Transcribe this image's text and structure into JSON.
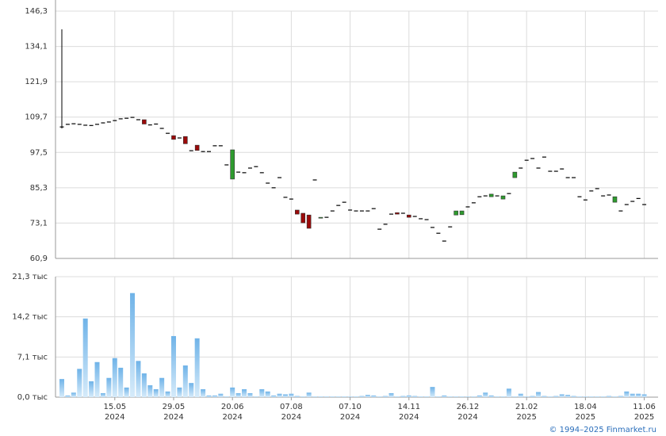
{
  "chart_data": [
    {
      "type": "candlestick",
      "categories": [
        null,
        null,
        null,
        null,
        null,
        null,
        null,
        null,
        null,
        "15.05",
        null,
        null,
        null,
        null,
        null,
        null,
        null,
        null,
        null,
        "29.05",
        null,
        null,
        null,
        null,
        null,
        null,
        null,
        null,
        null,
        "20.06",
        null,
        null,
        null,
        null,
        null,
        null,
        null,
        null,
        null,
        "07.08",
        null,
        null,
        null,
        null,
        null,
        null,
        null,
        null,
        null,
        "07.10",
        null,
        null,
        null,
        null,
        null,
        null,
        null,
        null,
        null,
        "14.11",
        null,
        null,
        null,
        null,
        null,
        null,
        null,
        null,
        null,
        "26.12",
        null,
        null,
        null,
        null,
        null,
        null,
        null,
        null,
        null,
        "21.02",
        null,
        null,
        null,
        null,
        null,
        null,
        null,
        null,
        null,
        "18.04",
        null,
        null,
        null,
        null,
        null,
        null,
        null,
        null,
        null,
        "11.06"
      ],
      "category_years": [
        null,
        null,
        null,
        null,
        null,
        null,
        null,
        null,
        null,
        "2024",
        null,
        null,
        null,
        null,
        null,
        null,
        null,
        null,
        null,
        "2024",
        null,
        null,
        null,
        null,
        null,
        null,
        null,
        null,
        null,
        "2024",
        null,
        null,
        null,
        null,
        null,
        null,
        null,
        null,
        null,
        "2024",
        null,
        null,
        null,
        null,
        null,
        null,
        null,
        null,
        null,
        "2024",
        null,
        null,
        null,
        null,
        null,
        null,
        null,
        null,
        null,
        "2024",
        null,
        null,
        null,
        null,
        null,
        null,
        null,
        null,
        null,
        "2024",
        null,
        null,
        null,
        null,
        null,
        null,
        null,
        null,
        null,
        "2025",
        null,
        null,
        null,
        null,
        null,
        null,
        null,
        null,
        null,
        "2025",
        null,
        null,
        null,
        null,
        null,
        null,
        null,
        null,
        null,
        "2025"
      ],
      "open": [
        106.3,
        107.2,
        107.4,
        107.2,
        106.9,
        106.8,
        107.2,
        107.7,
        108.0,
        108.5,
        109.1,
        109.3,
        109.6,
        108.8,
        108.8,
        107.0,
        107.3,
        105.8,
        104.1,
        103.3,
        102.5,
        103.0,
        98.1,
        100.0,
        97.8,
        97.8,
        99.8,
        99.8,
        93.2,
        88.3,
        90.7,
        90.5,
        92.1,
        92.6,
        90.5,
        86.9,
        85.3,
        88.8,
        82.0,
        81.4,
        77.6,
        76.5,
        75.9,
        88.0,
        74.8,
        75.1,
        77.3,
        79.2,
        80.3,
        77.6,
        77.3,
        77.3,
        77.3,
        78.1,
        71.0,
        72.7,
        76.2,
        76.7,
        76.5,
        75.9,
        75.4,
        74.6,
        74.3,
        71.6,
        69.6,
        66.9,
        71.8,
        75.9,
        76.0,
        78.7,
        80.1,
        82.2,
        82.5,
        82.2,
        82.5,
        81.4,
        83.3,
        88.8,
        92.1,
        94.8,
        95.4,
        92.1,
        95.9,
        91.0,
        91.0,
        91.8,
        88.8,
        88.8,
        82.2,
        81.1,
        84.2,
        85.0,
        82.5,
        82.8,
        80.3,
        77.3,
        79.5,
        80.6,
        81.6,
        79.5
      ],
      "high": [
        140.0,
        107.2,
        107.4,
        107.2,
        106.9,
        106.8,
        107.2,
        107.7,
        108.0,
        108.5,
        109.1,
        109.3,
        109.6,
        108.8,
        108.8,
        107.0,
        107.3,
        105.8,
        104.1,
        103.3,
        102.5,
        103.0,
        98.1,
        100.0,
        97.8,
        97.8,
        99.8,
        99.8,
        93.2,
        98.4,
        90.7,
        90.5,
        92.1,
        92.6,
        90.5,
        86.9,
        85.3,
        88.8,
        82.0,
        81.4,
        77.6,
        76.5,
        75.9,
        88.0,
        75.1,
        75.1,
        77.3,
        79.2,
        80.3,
        77.6,
        77.3,
        77.3,
        77.3,
        78.1,
        71.0,
        72.7,
        76.2,
        76.7,
        76.5,
        75.9,
        75.4,
        74.6,
        74.3,
        71.6,
        69.6,
        66.9,
        71.8,
        77.3,
        77.3,
        78.7,
        80.1,
        82.2,
        82.5,
        83.1,
        82.5,
        82.5,
        83.3,
        90.7,
        92.1,
        94.8,
        95.4,
        92.1,
        95.9,
        91.0,
        91.0,
        91.8,
        88.8,
        88.8,
        82.2,
        81.1,
        84.2,
        85.0,
        82.5,
        82.8,
        82.2,
        77.3,
        79.5,
        80.6,
        81.6,
        79.5
      ],
      "low": [
        105.8,
        107.2,
        107.4,
        107.2,
        106.9,
        106.8,
        107.2,
        107.7,
        108.0,
        108.5,
        109.1,
        109.3,
        109.6,
        108.8,
        107.3,
        107.0,
        107.3,
        105.8,
        104.1,
        102.0,
        102.5,
        100.5,
        98.1,
        98.2,
        97.8,
        97.8,
        99.8,
        99.8,
        93.2,
        88.3,
        90.7,
        90.5,
        92.1,
        92.6,
        90.5,
        86.9,
        85.3,
        88.8,
        82.0,
        81.4,
        76.2,
        73.2,
        71.3,
        88.0,
        74.8,
        75.1,
        77.3,
        79.2,
        80.3,
        77.6,
        77.3,
        77.3,
        77.3,
        78.1,
        71.0,
        72.7,
        76.2,
        76.2,
        76.5,
        75.1,
        75.4,
        74.6,
        74.3,
        71.6,
        69.6,
        66.9,
        71.8,
        75.9,
        76.0,
        78.7,
        80.1,
        82.2,
        82.5,
        82.2,
        82.5,
        81.4,
        83.3,
        88.8,
        92.1,
        94.8,
        95.4,
        92.1,
        95.9,
        91.0,
        91.0,
        91.8,
        88.8,
        88.8,
        82.2,
        81.1,
        84.2,
        85.0,
        82.5,
        82.8,
        80.3,
        77.3,
        79.5,
        80.6,
        81.6,
        79.5
      ],
      "close": [
        106.3,
        107.2,
        107.4,
        107.2,
        106.9,
        106.8,
        107.2,
        107.7,
        108.0,
        108.5,
        109.1,
        109.3,
        109.6,
        108.8,
        107.3,
        107.0,
        107.3,
        105.8,
        104.1,
        102.0,
        102.5,
        100.5,
        98.1,
        98.2,
        97.8,
        97.8,
        99.8,
        99.8,
        93.2,
        98.4,
        90.7,
        90.5,
        92.1,
        92.6,
        90.5,
        86.9,
        85.3,
        88.8,
        82.0,
        81.4,
        76.2,
        73.2,
        71.3,
        88.0,
        75.1,
        75.1,
        77.3,
        79.2,
        80.3,
        77.6,
        77.3,
        77.3,
        77.3,
        78.1,
        71.0,
        72.7,
        76.2,
        76.2,
        76.5,
        75.1,
        75.4,
        74.6,
        74.3,
        71.6,
        69.6,
        66.9,
        71.8,
        77.3,
        77.3,
        78.7,
        80.1,
        82.2,
        82.5,
        83.1,
        82.5,
        82.5,
        83.3,
        90.7,
        92.1,
        94.8,
        95.4,
        92.1,
        95.9,
        91.0,
        91.0,
        91.8,
        88.8,
        88.8,
        82.2,
        81.1,
        84.2,
        85.0,
        82.5,
        82.8,
        82.2,
        77.3,
        79.5,
        80.6,
        81.6,
        79.5
      ],
      "up_color": "#2e9b2e",
      "down_color": "#9b0a0a",
      "flat_color": "#000000",
      "ylim": [
        60.9,
        146.3
      ],
      "yticks": [
        {
          "value": 60.9,
          "label": "60,9"
        },
        {
          "value": 73.1,
          "label": "73,1"
        },
        {
          "value": 85.3,
          "label": "85,3"
        },
        {
          "value": 97.5,
          "label": "97,5"
        },
        {
          "value": 109.7,
          "label": "109,7"
        },
        {
          "value": 121.9,
          "label": "121,9"
        },
        {
          "value": 134.1,
          "label": "134,1"
        },
        {
          "value": 146.3,
          "label": "146,3"
        }
      ],
      "grid": true
    },
    {
      "type": "bar",
      "values": [
        3.2,
        0.3,
        0.8,
        5.0,
        13.9,
        2.8,
        6.2,
        0.7,
        3.4,
        6.9,
        5.2,
        1.7,
        18.4,
        6.4,
        4.2,
        2.1,
        1.4,
        3.4,
        1.0,
        10.8,
        1.7,
        5.6,
        2.5,
        10.4,
        1.4,
        0.3,
        0.3,
        0.6,
        0.1,
        1.7,
        0.7,
        1.4,
        0.7,
        0.1,
        1.4,
        1.0,
        0.3,
        0.6,
        0.5,
        0.6,
        0.2,
        0.1,
        0.8,
        0.1,
        0.1,
        0.1,
        0.1,
        0.1,
        0.1,
        0.1,
        0.1,
        0.2,
        0.4,
        0.3,
        0.1,
        0.2,
        0.7,
        0.1,
        0.2,
        0.3,
        0.2,
        0.1,
        0.1,
        1.8,
        0.1,
        0.3,
        0.1,
        0.1,
        0.1,
        0.1,
        0.1,
        0.3,
        0.8,
        0.3,
        0.1,
        0.1,
        1.5,
        0.1,
        0.6,
        0.1,
        0.2,
        0.9,
        0.2,
        0.1,
        0.2,
        0.5,
        0.4,
        0.2,
        0.1,
        0.1,
        0.1,
        0.1,
        0.1,
        0.2,
        0.1,
        0.2,
        1.0,
        0.6,
        0.6,
        0.5
      ],
      "color": "#8cc4ee",
      "ylim": [
        0,
        21.3
      ],
      "yticks": [
        {
          "value": 0,
          "label": "0,0 тыс"
        },
        {
          "value": 7.1,
          "label": "7,1 тыс"
        },
        {
          "value": 14.2,
          "label": "14,2 тыс"
        },
        {
          "value": 21.3,
          "label": "21,3 тыс"
        }
      ],
      "grid": true
    }
  ],
  "footer": "© 1994–2025 Finmarket.ru"
}
